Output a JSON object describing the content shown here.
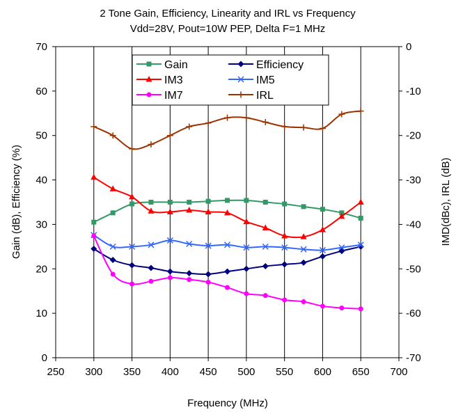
{
  "chart_data": {
    "type": "line",
    "title": "2 Tone Gain, Efficiency, Linearity and IRL vs Frequency",
    "subtitle": "Vdd=28V,  Pout=10W PEP, Delta F=1 MHz",
    "xlabel": "Frequency (MHz)",
    "ylabel": "Gain (dB), Efficiency (%)",
    "y2label": "IMD(dBc), IRL (dB)",
    "xlim": [
      250,
      700
    ],
    "ylim": [
      0,
      70
    ],
    "y2lim": [
      -70,
      0
    ],
    "x_ticks": [
      "250",
      "300",
      "350",
      "400",
      "450",
      "500",
      "550",
      "600",
      "650",
      "700"
    ],
    "y_ticks": [
      "0",
      "10",
      "20",
      "30",
      "40",
      "50",
      "60",
      "70"
    ],
    "y2_ticks": [
      "-70",
      "-60",
      "-50",
      "-40",
      "-30",
      "-20",
      "-10",
      "0"
    ],
    "grid": "vertical",
    "legend_position": "top",
    "x": [
      300,
      325,
      350,
      375,
      400,
      425,
      450,
      475,
      500,
      525,
      550,
      575,
      600,
      625,
      650
    ],
    "series": [
      {
        "name": "Gain",
        "axis": "left",
        "color": "#339966",
        "marker": "square",
        "values": [
          30.5,
          32.6,
          34.6,
          35.0,
          35.0,
          35.0,
          35.2,
          35.4,
          35.4,
          35.0,
          34.6,
          34.0,
          33.4,
          32.6,
          31.4
        ]
      },
      {
        "name": "Efficiency",
        "axis": "left",
        "color": "#000080",
        "marker": "diamond",
        "values": [
          24.5,
          22.0,
          20.8,
          20.2,
          19.4,
          19.0,
          18.8,
          19.4,
          20.0,
          20.6,
          21.0,
          21.4,
          22.8,
          24.0,
          25.0
        ]
      },
      {
        "name": "IM3",
        "axis": "right",
        "color": "#ff0000",
        "marker": "triangle",
        "values": [
          -29.4,
          -32.0,
          -33.8,
          -37.0,
          -37.2,
          -36.8,
          -37.2,
          -37.4,
          -39.4,
          -40.8,
          -42.6,
          -42.8,
          -41.2,
          -38.2,
          -35.0
        ]
      },
      {
        "name": "IM5",
        "axis": "right",
        "color": "#3366ff",
        "marker": "x",
        "values": [
          -42.4,
          -45.0,
          -45.0,
          -44.6,
          -43.6,
          -44.4,
          -44.8,
          -44.6,
          -45.2,
          -45.0,
          -45.2,
          -45.6,
          -45.8,
          -45.2,
          -44.6
        ]
      },
      {
        "name": "IM7",
        "axis": "right",
        "color": "#ff00ff",
        "marker": "circle",
        "values": [
          -42.6,
          -51.2,
          -53.4,
          -52.8,
          -52.0,
          -52.4,
          -53.0,
          -54.2,
          -55.6,
          -56.0,
          -57.0,
          -57.4,
          -58.4,
          -58.8,
          -59.0
        ]
      },
      {
        "name": "IRL",
        "axis": "right",
        "color": "#993300",
        "marker": "plus",
        "values": [
          -18.0,
          -20.0,
          -23.0,
          -22.0,
          -20.0,
          -18.0,
          -17.2,
          -16.0,
          -16.0,
          -17.0,
          -18.0,
          -18.2,
          -18.4,
          -15.2,
          -14.5
        ]
      }
    ]
  }
}
